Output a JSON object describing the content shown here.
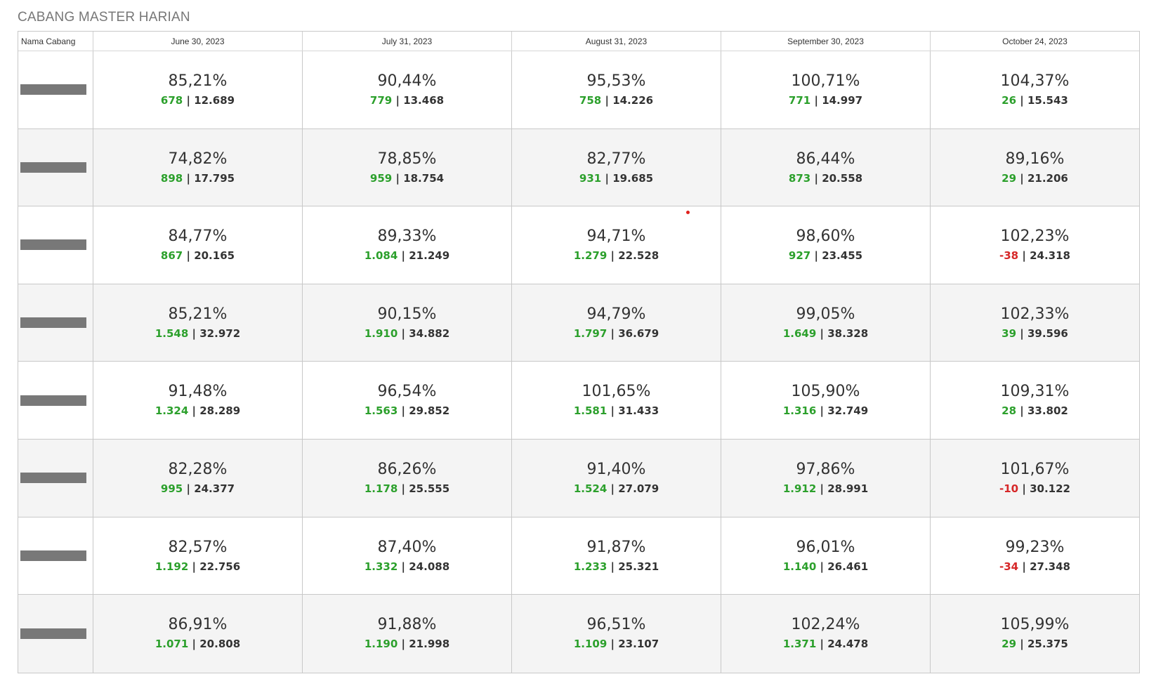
{
  "title": "CABANG MASTER HARIAN",
  "columns": [
    "Nama Cabang",
    "June 30, 2023",
    "July 31, 2023",
    "August 31, 2023",
    "September 30, 2023",
    "October 24, 2023"
  ],
  "colors": {
    "positive": "#2ca02c",
    "negative": "#d62728",
    "redacted": "#787878"
  },
  "separator": "|",
  "rows": [
    {
      "name": "",
      "cells": [
        {
          "pct": "85,21%",
          "delta": "678",
          "total": "12.689"
        },
        {
          "pct": "90,44%",
          "delta": "779",
          "total": "13.468"
        },
        {
          "pct": "95,53%",
          "delta": "758",
          "total": "14.226"
        },
        {
          "pct": "100,71%",
          "delta": "771",
          "total": "14.997"
        },
        {
          "pct": "104,37%",
          "delta": "26",
          "total": "15.543"
        }
      ]
    },
    {
      "name": "",
      "cells": [
        {
          "pct": "74,82%",
          "delta": "898",
          "total": "17.795"
        },
        {
          "pct": "78,85%",
          "delta": "959",
          "total": "18.754"
        },
        {
          "pct": "82,77%",
          "delta": "931",
          "total": "19.685"
        },
        {
          "pct": "86,44%",
          "delta": "873",
          "total": "20.558"
        },
        {
          "pct": "89,16%",
          "delta": "29",
          "total": "21.206"
        }
      ]
    },
    {
      "name": "",
      "cells": [
        {
          "pct": "84,77%",
          "delta": "867",
          "total": "20.165"
        },
        {
          "pct": "89,33%",
          "delta": "1.084",
          "total": "21.249"
        },
        {
          "pct": "94,71%",
          "delta": "1.279",
          "total": "22.528"
        },
        {
          "pct": "98,60%",
          "delta": "927",
          "total": "23.455"
        },
        {
          "pct": "102,23%",
          "delta": "-38",
          "total": "24.318"
        }
      ]
    },
    {
      "name": "",
      "cells": [
        {
          "pct": "85,21%",
          "delta": "1.548",
          "total": "32.972"
        },
        {
          "pct": "90,15%",
          "delta": "1.910",
          "total": "34.882"
        },
        {
          "pct": "94,79%",
          "delta": "1.797",
          "total": "36.679"
        },
        {
          "pct": "99,05%",
          "delta": "1.649",
          "total": "38.328"
        },
        {
          "pct": "102,33%",
          "delta": "39",
          "total": "39.596"
        }
      ]
    },
    {
      "name": "",
      "cells": [
        {
          "pct": "91,48%",
          "delta": "1.324",
          "total": "28.289"
        },
        {
          "pct": "96,54%",
          "delta": "1.563",
          "total": "29.852"
        },
        {
          "pct": "101,65%",
          "delta": "1.581",
          "total": "31.433"
        },
        {
          "pct": "105,90%",
          "delta": "1.316",
          "total": "32.749"
        },
        {
          "pct": "109,31%",
          "delta": "28",
          "total": "33.802"
        }
      ]
    },
    {
      "name": "",
      "cells": [
        {
          "pct": "82,28%",
          "delta": "995",
          "total": "24.377"
        },
        {
          "pct": "86,26%",
          "delta": "1.178",
          "total": "25.555"
        },
        {
          "pct": "91,40%",
          "delta": "1.524",
          "total": "27.079"
        },
        {
          "pct": "97,86%",
          "delta": "1.912",
          "total": "28.991"
        },
        {
          "pct": "101,67%",
          "delta": "-10",
          "total": "30.122"
        }
      ]
    },
    {
      "name": "",
      "cells": [
        {
          "pct": "82,57%",
          "delta": "1.192",
          "total": "22.756"
        },
        {
          "pct": "87,40%",
          "delta": "1.332",
          "total": "24.088"
        },
        {
          "pct": "91,87%",
          "delta": "1.233",
          "total": "25.321"
        },
        {
          "pct": "96,01%",
          "delta": "1.140",
          "total": "26.461"
        },
        {
          "pct": "99,23%",
          "delta": "-34",
          "total": "27.348"
        }
      ]
    },
    {
      "name": "",
      "cells": [
        {
          "pct": "86,91%",
          "delta": "1.071",
          "total": "20.808"
        },
        {
          "pct": "91,88%",
          "delta": "1.190",
          "total": "21.998"
        },
        {
          "pct": "96,51%",
          "delta": "1.109",
          "total": "23.107"
        },
        {
          "pct": "102,24%",
          "delta": "1.371",
          "total": "24.478"
        },
        {
          "pct": "105,99%",
          "delta": "29",
          "total": "25.375"
        }
      ]
    }
  ]
}
